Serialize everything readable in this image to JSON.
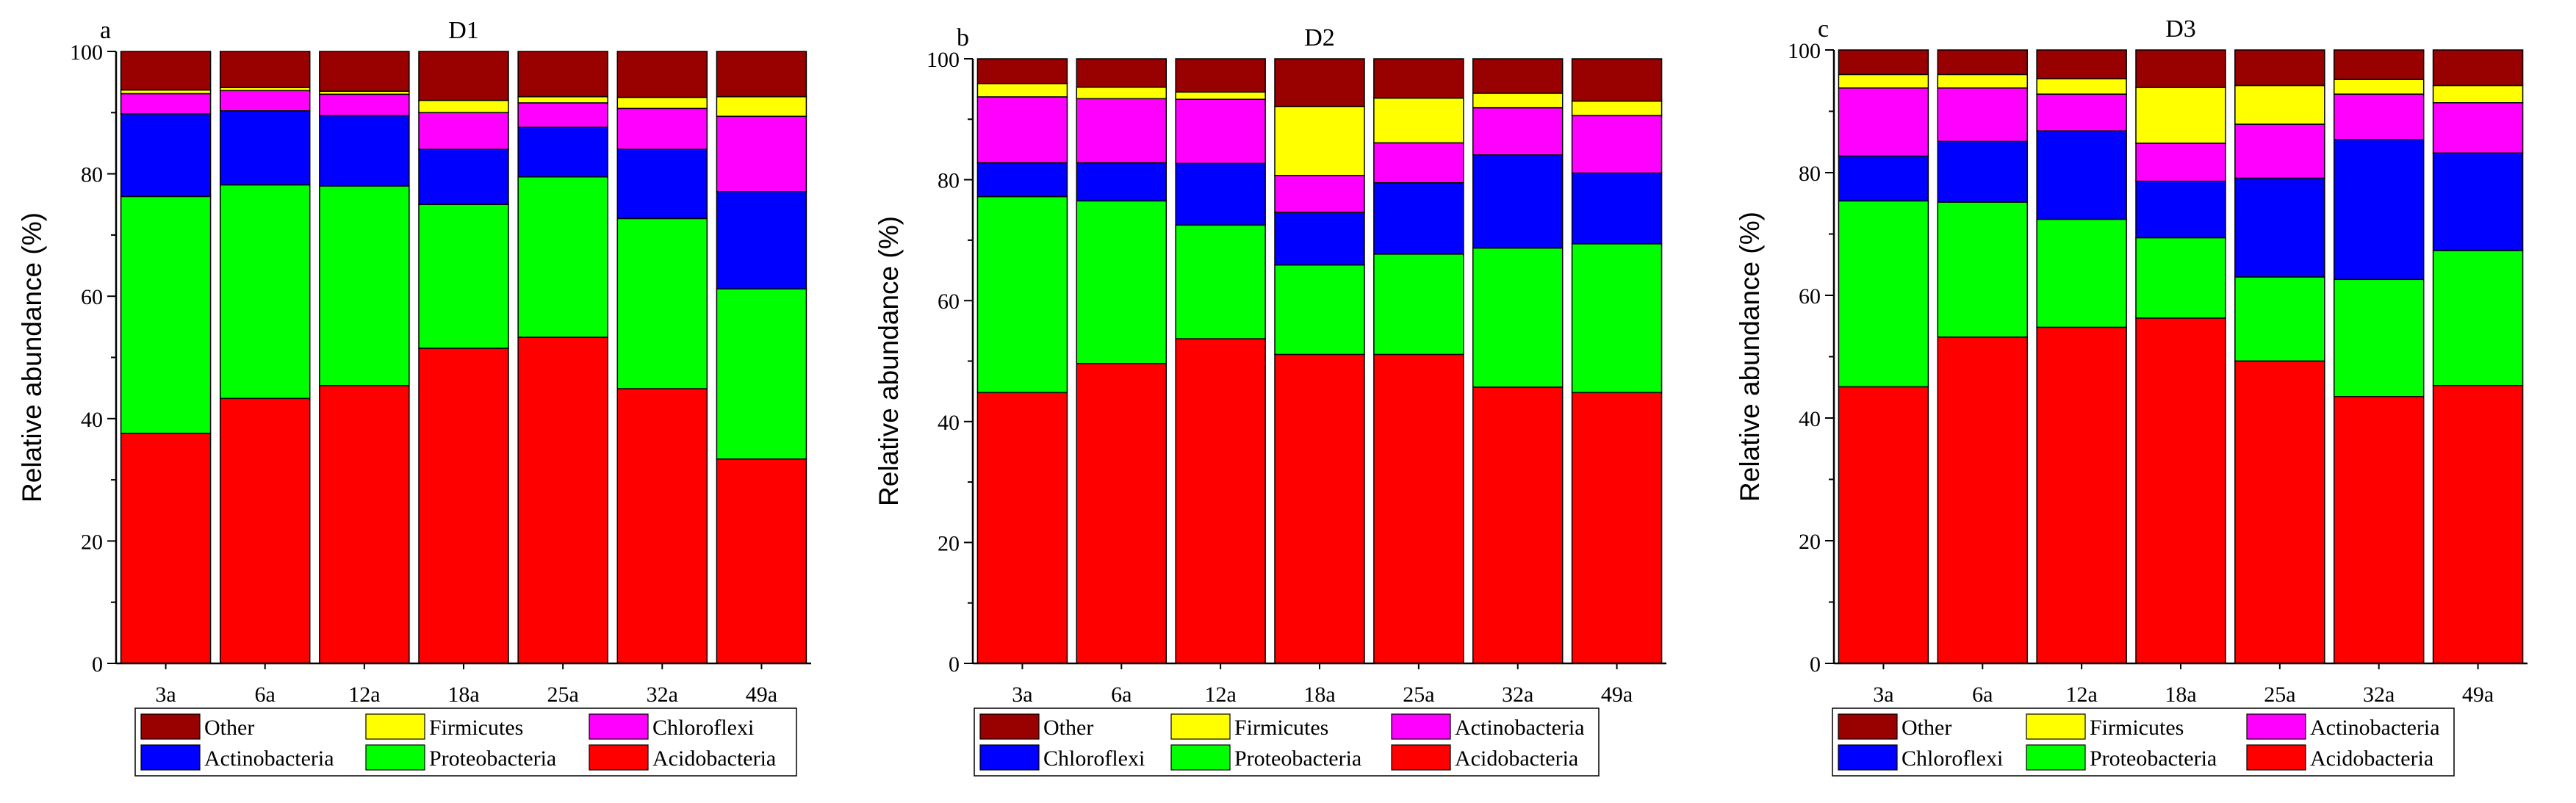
{
  "chart_data": [
    {
      "panel_letter": "a",
      "title": "D1",
      "type": "bar",
      "stacked": true,
      "ylabel": "Relative abundance (%)",
      "xlabel": "",
      "ylim": [
        0,
        100
      ],
      "yticks": [
        0,
        20,
        40,
        60,
        80,
        100
      ],
      "categories": [
        "3a",
        "6a",
        "12a",
        "18a",
        "25a",
        "32a",
        "49a"
      ],
      "series": [
        {
          "name": "Acidobacteria",
          "color": "#ff0000",
          "values": [
            37.6,
            43.3,
            45.4,
            51.5,
            53.3,
            44.9,
            33.4
          ]
        },
        {
          "name": "Proteobacteria",
          "color": "#00ff00",
          "values": [
            38.7,
            34.9,
            32.6,
            23.5,
            26.2,
            27.8,
            27.8
          ]
        },
        {
          "name": "Actinobacteria",
          "color": "#0000ff",
          "values": [
            13.5,
            12.1,
            11.5,
            9.0,
            8.1,
            11.3,
            15.9
          ]
        },
        {
          "name": "Chloroflexi",
          "color": "#ff00ff",
          "values": [
            3.3,
            3.3,
            3.5,
            6.0,
            4.0,
            6.7,
            12.3
          ]
        },
        {
          "name": "Firmicutes",
          "color": "#ffff00",
          "values": [
            0.6,
            0.5,
            0.5,
            2.0,
            1.0,
            1.8,
            3.2
          ]
        },
        {
          "name": "Other",
          "color": "#990000",
          "values": [
            6.3,
            5.9,
            6.5,
            8.0,
            7.4,
            7.5,
            7.4
          ]
        }
      ],
      "legend": {
        "position": "bottom",
        "rows": [
          [
            {
              "label": "Other",
              "color": "#990000"
            },
            {
              "label": "Firmicutes",
              "color": "#ffff00"
            },
            {
              "label": "Chloroflexi",
              "color": "#ff00ff"
            }
          ],
          [
            {
              "label": "Actinobacteria",
              "color": "#0000ff"
            },
            {
              "label": "Proteobacteria",
              "color": "#00ff00"
            },
            {
              "label": "Acidobacteria",
              "color": "#ff0000"
            }
          ]
        ]
      }
    },
    {
      "panel_letter": "b",
      "title": "D2",
      "type": "bar",
      "stacked": true,
      "ylabel": "Relative abundance (%)",
      "xlabel": "",
      "ylim": [
        0,
        100
      ],
      "yticks": [
        0,
        20,
        40,
        60,
        80,
        100
      ],
      "categories": [
        "3a",
        "6a",
        "12a",
        "18a",
        "25a",
        "32a",
        "49a"
      ],
      "series": [
        {
          "name": "Acidobacteria",
          "color": "#ff0000",
          "values": [
            44.8,
            49.6,
            53.7,
            51.1,
            51.1,
            45.7,
            44.8
          ]
        },
        {
          "name": "Proteobacteria",
          "color": "#00ff00",
          "values": [
            32.4,
            26.9,
            18.8,
            14.8,
            16.6,
            23.0,
            24.6
          ]
        },
        {
          "name": "Chloroflexi",
          "color": "#0000ff",
          "values": [
            5.6,
            6.3,
            10.2,
            8.7,
            11.8,
            15.4,
            11.7
          ]
        },
        {
          "name": "Actinobacteria",
          "color": "#ff00ff",
          "values": [
            10.9,
            10.6,
            10.6,
            6.1,
            6.6,
            7.8,
            9.5
          ]
        },
        {
          "name": "Firmicutes",
          "color": "#ffff00",
          "values": [
            2.2,
            1.9,
            1.2,
            11.4,
            7.4,
            2.4,
            2.4
          ]
        },
        {
          "name": "Other",
          "color": "#990000",
          "values": [
            4.1,
            4.7,
            5.5,
            7.9,
            6.5,
            5.7,
            7.0
          ]
        }
      ],
      "legend": {
        "position": "bottom",
        "rows": [
          [
            {
              "label": "Other",
              "color": "#990000"
            },
            {
              "label": "Firmicutes",
              "color": "#ffff00"
            },
            {
              "label": "Actinobacteria",
              "color": "#ff00ff"
            }
          ],
          [
            {
              "label": "Chloroflexi",
              "color": "#0000ff"
            },
            {
              "label": "Proteobacteria",
              "color": "#00ff00"
            },
            {
              "label": "Acidobacteria",
              "color": "#ff0000"
            }
          ]
        ]
      }
    },
    {
      "panel_letter": "c",
      "title": "D3",
      "type": "bar",
      "stacked": true,
      "ylabel": "Relative abundance (%)",
      "xlabel": "",
      "ylim": [
        0,
        100
      ],
      "yticks": [
        0,
        20,
        40,
        60,
        80,
        100
      ],
      "categories": [
        "3a",
        "6a",
        "12a",
        "18a",
        "25a",
        "32a",
        "49a"
      ],
      "series": [
        {
          "name": "Acidobacteria",
          "color": "#ff0000",
          "values": [
            45.1,
            53.2,
            54.8,
            56.3,
            49.3,
            43.5,
            45.3
          ]
        },
        {
          "name": "Proteobacteria",
          "color": "#00ff00",
          "values": [
            30.3,
            22.0,
            17.6,
            13.1,
            13.7,
            19.1,
            22.0
          ]
        },
        {
          "name": "Chloroflexi",
          "color": "#0000ff",
          "values": [
            7.3,
            9.9,
            14.4,
            9.2,
            16.1,
            22.8,
            15.9
          ]
        },
        {
          "name": "Actinobacteria",
          "color": "#ff00ff",
          "values": [
            11.1,
            8.7,
            6.0,
            6.2,
            8.8,
            7.4,
            8.2
          ]
        },
        {
          "name": "Firmicutes",
          "color": "#ffff00",
          "values": [
            2.2,
            2.2,
            2.5,
            9.1,
            6.3,
            2.4,
            2.8
          ]
        },
        {
          "name": "Other",
          "color": "#990000",
          "values": [
            4.0,
            4.0,
            4.7,
            6.1,
            5.8,
            4.8,
            5.8
          ]
        }
      ],
      "legend": {
        "position": "bottom",
        "rows": [
          [
            {
              "label": "Other",
              "color": "#990000"
            },
            {
              "label": "Firmicutes",
              "color": "#ffff00"
            },
            {
              "label": "Actinobacteria",
              "color": "#ff00ff"
            }
          ],
          [
            {
              "label": "Chloroflexi",
              "color": "#0000ff"
            },
            {
              "label": "Proteobacteria",
              "color": "#00ff00"
            },
            {
              "label": "Acidobacteria",
              "color": "#ff0000"
            }
          ]
        ]
      }
    }
  ]
}
